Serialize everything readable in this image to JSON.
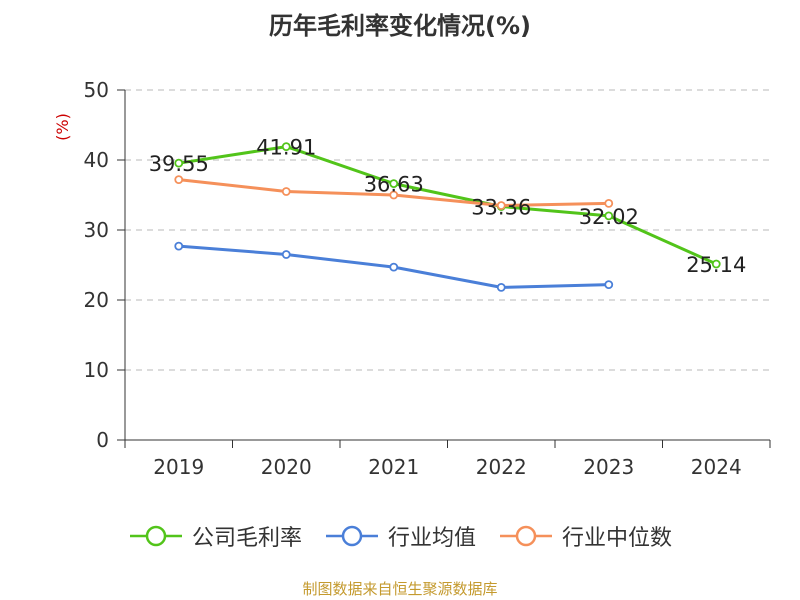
{
  "title": "历年毛利率变化情况(%)",
  "source": "制图数据来自恒生聚源数据库",
  "chart_data": {
    "type": "line",
    "title": "历年毛利率变化情况(%)",
    "ylabel": "(%)",
    "xlabel": "",
    "categories": [
      "2019",
      "2020",
      "2021",
      "2022",
      "2023",
      "2024"
    ],
    "ylim": [
      0,
      50
    ],
    "yticks": [
      0,
      10,
      20,
      30,
      40,
      50
    ],
    "grid": true,
    "legend": "bottom",
    "series": [
      {
        "name": "公司毛利率",
        "color": "#52c41a",
        "values": [
          39.55,
          41.91,
          36.63,
          33.36,
          32.02,
          25.14
        ],
        "labels": [
          "39.55",
          "41.91",
          "36.63",
          "33.36",
          "32.02",
          "25.14"
        ]
      },
      {
        "name": "行业均值",
        "color": "#4a7fd8",
        "values": [
          27.7,
          26.5,
          24.7,
          21.8,
          22.2,
          null
        ]
      },
      {
        "name": "行业中位数",
        "color": "#f5905a",
        "values": [
          37.2,
          35.5,
          35.0,
          33.5,
          33.8,
          null
        ]
      }
    ]
  }
}
